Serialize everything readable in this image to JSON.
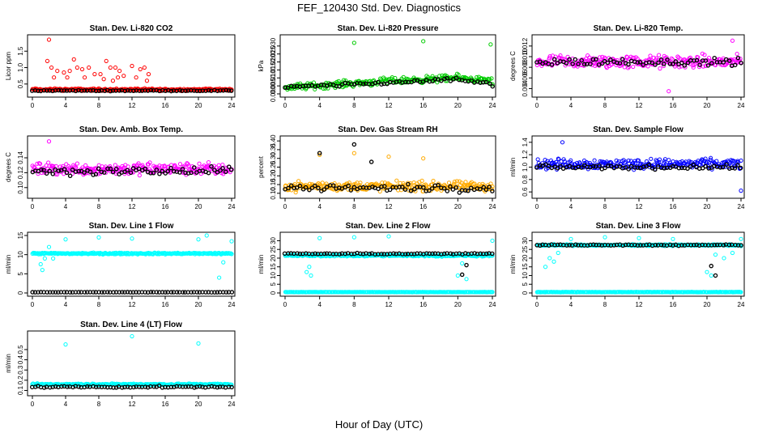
{
  "figure": {
    "title": "FEF_120430  Std. Dev. Diagnostics",
    "xlabel": "Hour of Day (UTC)",
    "xticks": [
      0,
      4,
      8,
      12,
      16,
      20,
      24
    ],
    "xlim": [
      0,
      24
    ]
  },
  "chart_data": [
    {
      "type": "scatter",
      "title": "Stan. Dev. Li-820 CO2",
      "ylabel": "Licor ppm",
      "ylim": [
        0.2,
        1.9
      ],
      "yticks": [
        0.5,
        1.0,
        1.5
      ],
      "ytick_labels": [
        "0.5",
        "1.0",
        "1.5"
      ],
      "series": [
        {
          "color": "#ff0000",
          "base": 0.33,
          "noise": 0.05,
          "outliers": [
            [
              2.0,
              1.85
            ],
            [
              1.8,
              1.2
            ],
            [
              2.3,
              1.0
            ],
            [
              3.0,
              0.9
            ],
            [
              3.8,
              0.85
            ],
            [
              4.5,
              0.9
            ],
            [
              5.0,
              1.25
            ],
            [
              5.4,
              1.0
            ],
            [
              6.0,
              0.95
            ],
            [
              6.8,
              1.0
            ],
            [
              7.5,
              0.8
            ],
            [
              8.2,
              0.8
            ],
            [
              8.9,
              1.2
            ],
            [
              9.4,
              1.0
            ],
            [
              10.0,
              1.0
            ],
            [
              10.5,
              0.9
            ],
            [
              11.0,
              0.75
            ],
            [
              12.0,
              1.05
            ],
            [
              13.0,
              0.95
            ],
            [
              13.5,
              1.0
            ],
            [
              14.0,
              0.8
            ],
            [
              2.6,
              0.7
            ],
            [
              4.2,
              0.7
            ],
            [
              6.3,
              0.7
            ],
            [
              8.6,
              0.65
            ],
            [
              12.5,
              0.7
            ],
            [
              10.3,
              0.7
            ],
            [
              9.7,
              0.6
            ],
            [
              13.8,
              0.6
            ]
          ]
        },
        {
          "color": "#000000",
          "base": 0.3,
          "noise": 0.02,
          "outliers": []
        }
      ]
    },
    {
      "type": "scatter",
      "title": "Stan. Dev. Li-820 Pressure",
      "ylabel": "kPa",
      "ylim": [
        0.0,
        0.035
      ],
      "yticks": [
        0.0,
        0.005,
        0.01,
        0.015,
        0.02,
        0.025,
        0.03
      ],
      "ytick_labels": [
        "0.000",
        "0.005",
        "0.010",
        "0.015",
        "0.020",
        "0.025",
        "0.030"
      ],
      "series": [
        {
          "color": "#00cc00",
          "base": 0.005,
          "trend": [
            [
              0,
              0.004
            ],
            [
              12,
              0.008
            ],
            [
              20,
              0.01
            ],
            [
              24,
              0.008
            ]
          ],
          "noise": 0.003,
          "outliers": [
            [
              8.0,
              0.032
            ],
            [
              16.0,
              0.033
            ],
            [
              23.8,
              0.031
            ]
          ]
        },
        {
          "color": "#000000",
          "base": 0.005,
          "trend": [
            [
              0,
              0.004
            ],
            [
              12,
              0.007
            ],
            [
              20,
              0.009
            ],
            [
              24,
              0.006
            ]
          ],
          "noise": 0.0015,
          "outliers": []
        }
      ]
    },
    {
      "type": "scatter",
      "title": "Stan. Dev. Li-820 Temp.",
      "ylabel": "degrees C",
      "ylim": [
        0.003,
        0.0135
      ],
      "yticks": [
        0.004,
        0.006,
        0.008,
        0.01,
        0.012
      ],
      "ytick_labels": [
        "0.004",
        "0.006",
        "0.008",
        "0.010",
        "0.012"
      ],
      "series": [
        {
          "color": "#ff00ff",
          "base": 0.009,
          "noise": 0.0018,
          "outliers": [
            [
              15.5,
              0.0035
            ],
            [
              23.0,
              0.013
            ]
          ]
        },
        {
          "color": "#000000",
          "base": 0.009,
          "noise": 0.001,
          "outliers": []
        }
      ]
    },
    {
      "type": "scatter",
      "title": "Stan. Dev. Amb. Box Temp.",
      "ylabel": "degrees C",
      "ylim": [
        0.09,
        0.165
      ],
      "yticks": [
        0.1,
        0.12,
        0.14
      ],
      "ytick_labels": [
        "0.10",
        "0.12",
        "0.14"
      ],
      "series": [
        {
          "color": "#ff00ff",
          "base": 0.125,
          "noise": 0.012,
          "outliers": [
            [
              2.0,
              0.162
            ]
          ]
        },
        {
          "color": "#000000",
          "base": 0.122,
          "noise": 0.008,
          "outliers": []
        }
      ]
    },
    {
      "type": "scatter",
      "title": "Stan. Dev. Gas Stream RH",
      "ylabel": "percent",
      "ylim": [
        0.09,
        0.41
      ],
      "yticks": [
        0.1,
        0.15,
        0.2,
        0.25,
        0.3,
        0.35,
        0.4
      ],
      "ytick_labels": [
        "0.10",
        "0.15",
        "0.20",
        "0.25",
        "0.30",
        "0.35",
        "0.40"
      ],
      "series": [
        {
          "color": "#ffaa00",
          "base": 0.14,
          "noise": 0.04,
          "outliers": [
            [
              8.0,
              0.33
            ],
            [
              4.0,
              0.32
            ],
            [
              12.0,
              0.31
            ],
            [
              16.0,
              0.3
            ]
          ]
        },
        {
          "color": "#000000",
          "base": 0.13,
          "noise": 0.03,
          "outliers": [
            [
              4.0,
              0.33
            ],
            [
              8.0,
              0.38
            ],
            [
              10.0,
              0.28
            ]
          ]
        }
      ]
    },
    {
      "type": "scatter",
      "title": "Stan. Dev. Sample Flow",
      "ylabel": "ml/min",
      "ylim": [
        0.55,
        1.45
      ],
      "yticks": [
        0.6,
        0.8,
        1.0,
        1.2,
        1.4
      ],
      "ytick_labels": [
        "0.6",
        "0.8",
        "1.0",
        "1.2",
        "1.4"
      ],
      "series": [
        {
          "color": "#0000ff",
          "base": 1.05,
          "noise": 0.12,
          "outliers": [
            [
              24.0,
              0.62
            ],
            [
              3.0,
              1.4
            ]
          ]
        },
        {
          "color": "#000000",
          "base": 1.0,
          "noise": 0.05,
          "outliers": []
        }
      ]
    },
    {
      "type": "scatter",
      "title": "Stan. Dev. Line 1 Flow",
      "ylabel": "ml/min",
      "ylim": [
        0,
        15
      ],
      "yticks": [
        0,
        5,
        10,
        15
      ],
      "ytick_labels": [
        "0",
        "5",
        "10",
        "15"
      ],
      "series": [
        {
          "color": "#00ffff",
          "base": 10.3,
          "noise": 0.3,
          "outliers": [
            [
              1.0,
              7.5
            ],
            [
              1.5,
              9.0
            ],
            [
              2.0,
              12.0
            ],
            [
              1.2,
              6.0
            ],
            [
              2.5,
              9.0
            ],
            [
              4.0,
              14.0
            ],
            [
              8.0,
              14.5
            ],
            [
              12.0,
              14.2
            ],
            [
              20.0,
              14.0
            ],
            [
              21.0,
              15.0
            ],
            [
              22.0,
              10.5
            ],
            [
              23.0,
              8.0
            ],
            [
              22.5,
              4.0
            ],
            [
              24.0,
              13.5
            ]
          ]
        },
        {
          "color": "#000000",
          "base": 0.2,
          "noise": 0.05,
          "outliers": []
        }
      ]
    },
    {
      "type": "scatter",
      "title": "Stan. Dev. Line 2 Flow",
      "ylabel": "ml/min",
      "ylim": [
        0,
        33
      ],
      "yticks": [
        0,
        5,
        10,
        15,
        20,
        25,
        30
      ],
      "ytick_labels": [
        "0",
        "5",
        "10",
        "15",
        "20",
        "25",
        "30"
      ],
      "series": [
        {
          "color": "#00ffff",
          "base": 21.5,
          "noise": 0.8,
          "outliers": [
            [
              2.5,
              12.0
            ],
            [
              2.8,
              15.0
            ],
            [
              3.0,
              10.0
            ],
            [
              4.0,
              31.5
            ],
            [
              8.0,
              32.0
            ],
            [
              12.0,
              32.5
            ],
            [
              20.0,
              10.0
            ],
            [
              20.5,
              17.0
            ],
            [
              21.0,
              8.0
            ],
            [
              24.0,
              30.0
            ]
          ]
        },
        {
          "color": "#000000",
          "base": 22.5,
          "noise": 0.5,
          "outliers": [
            [
              20.5,
              10.5
            ],
            [
              21.0,
              16.0
            ]
          ]
        },
        {
          "color": "#00ffff",
          "base": 0.5,
          "noise": 0.1,
          "outliers": []
        }
      ]
    },
    {
      "type": "scatter",
      "title": "Stan. Dev. Line 3 Flow",
      "ylabel": "ml/min",
      "ylim": [
        0,
        33
      ],
      "yticks": [
        0,
        5,
        10,
        15,
        20,
        25,
        30
      ],
      "ytick_labels": [
        "0",
        "5",
        "10",
        "15",
        "20",
        "25",
        "30"
      ],
      "series": [
        {
          "color": "#00ffff",
          "base": 27.5,
          "noise": 0.6,
          "outliers": [
            [
              1.0,
              15.0
            ],
            [
              1.5,
              20.0
            ],
            [
              2.0,
              18.0
            ],
            [
              2.5,
              23.0
            ],
            [
              4.0,
              31.0
            ],
            [
              8.0,
              32.0
            ],
            [
              12.0,
              31.5
            ],
            [
              16.0,
              31.0
            ],
            [
              20.0,
              12.0
            ],
            [
              20.5,
              10.0
            ],
            [
              21.0,
              22.0
            ],
            [
              22.0,
              20.0
            ],
            [
              23.0,
              23.0
            ],
            [
              24.0,
              31.0
            ]
          ]
        },
        {
          "color": "#000000",
          "base": 27.5,
          "noise": 0.5,
          "outliers": [
            [
              20.5,
              15.5
            ],
            [
              21.0,
              10.0
            ]
          ]
        },
        {
          "color": "#00ffff",
          "base": 0.5,
          "noise": 0.15,
          "outliers": []
        }
      ]
    },
    {
      "type": "scatter",
      "title": "Stan. Dev. Line 4 (LT) Flow",
      "ylabel": "ml/min",
      "ylim": [
        0.08,
        0.65
      ],
      "yticks": [
        0.1,
        0.2,
        0.3,
        0.4,
        0.5
      ],
      "ytick_labels": [
        "0.1",
        "0.2",
        "0.3",
        "0.4",
        "0.5"
      ],
      "series": [
        {
          "color": "#00ffff",
          "base": 0.16,
          "noise": 0.012,
          "outliers": [
            [
              4.0,
              0.55
            ],
            [
              12.0,
              0.63
            ],
            [
              20.0,
              0.56
            ]
          ]
        },
        {
          "color": "#000000",
          "base": 0.135,
          "noise": 0.012,
          "outliers": []
        }
      ]
    }
  ]
}
